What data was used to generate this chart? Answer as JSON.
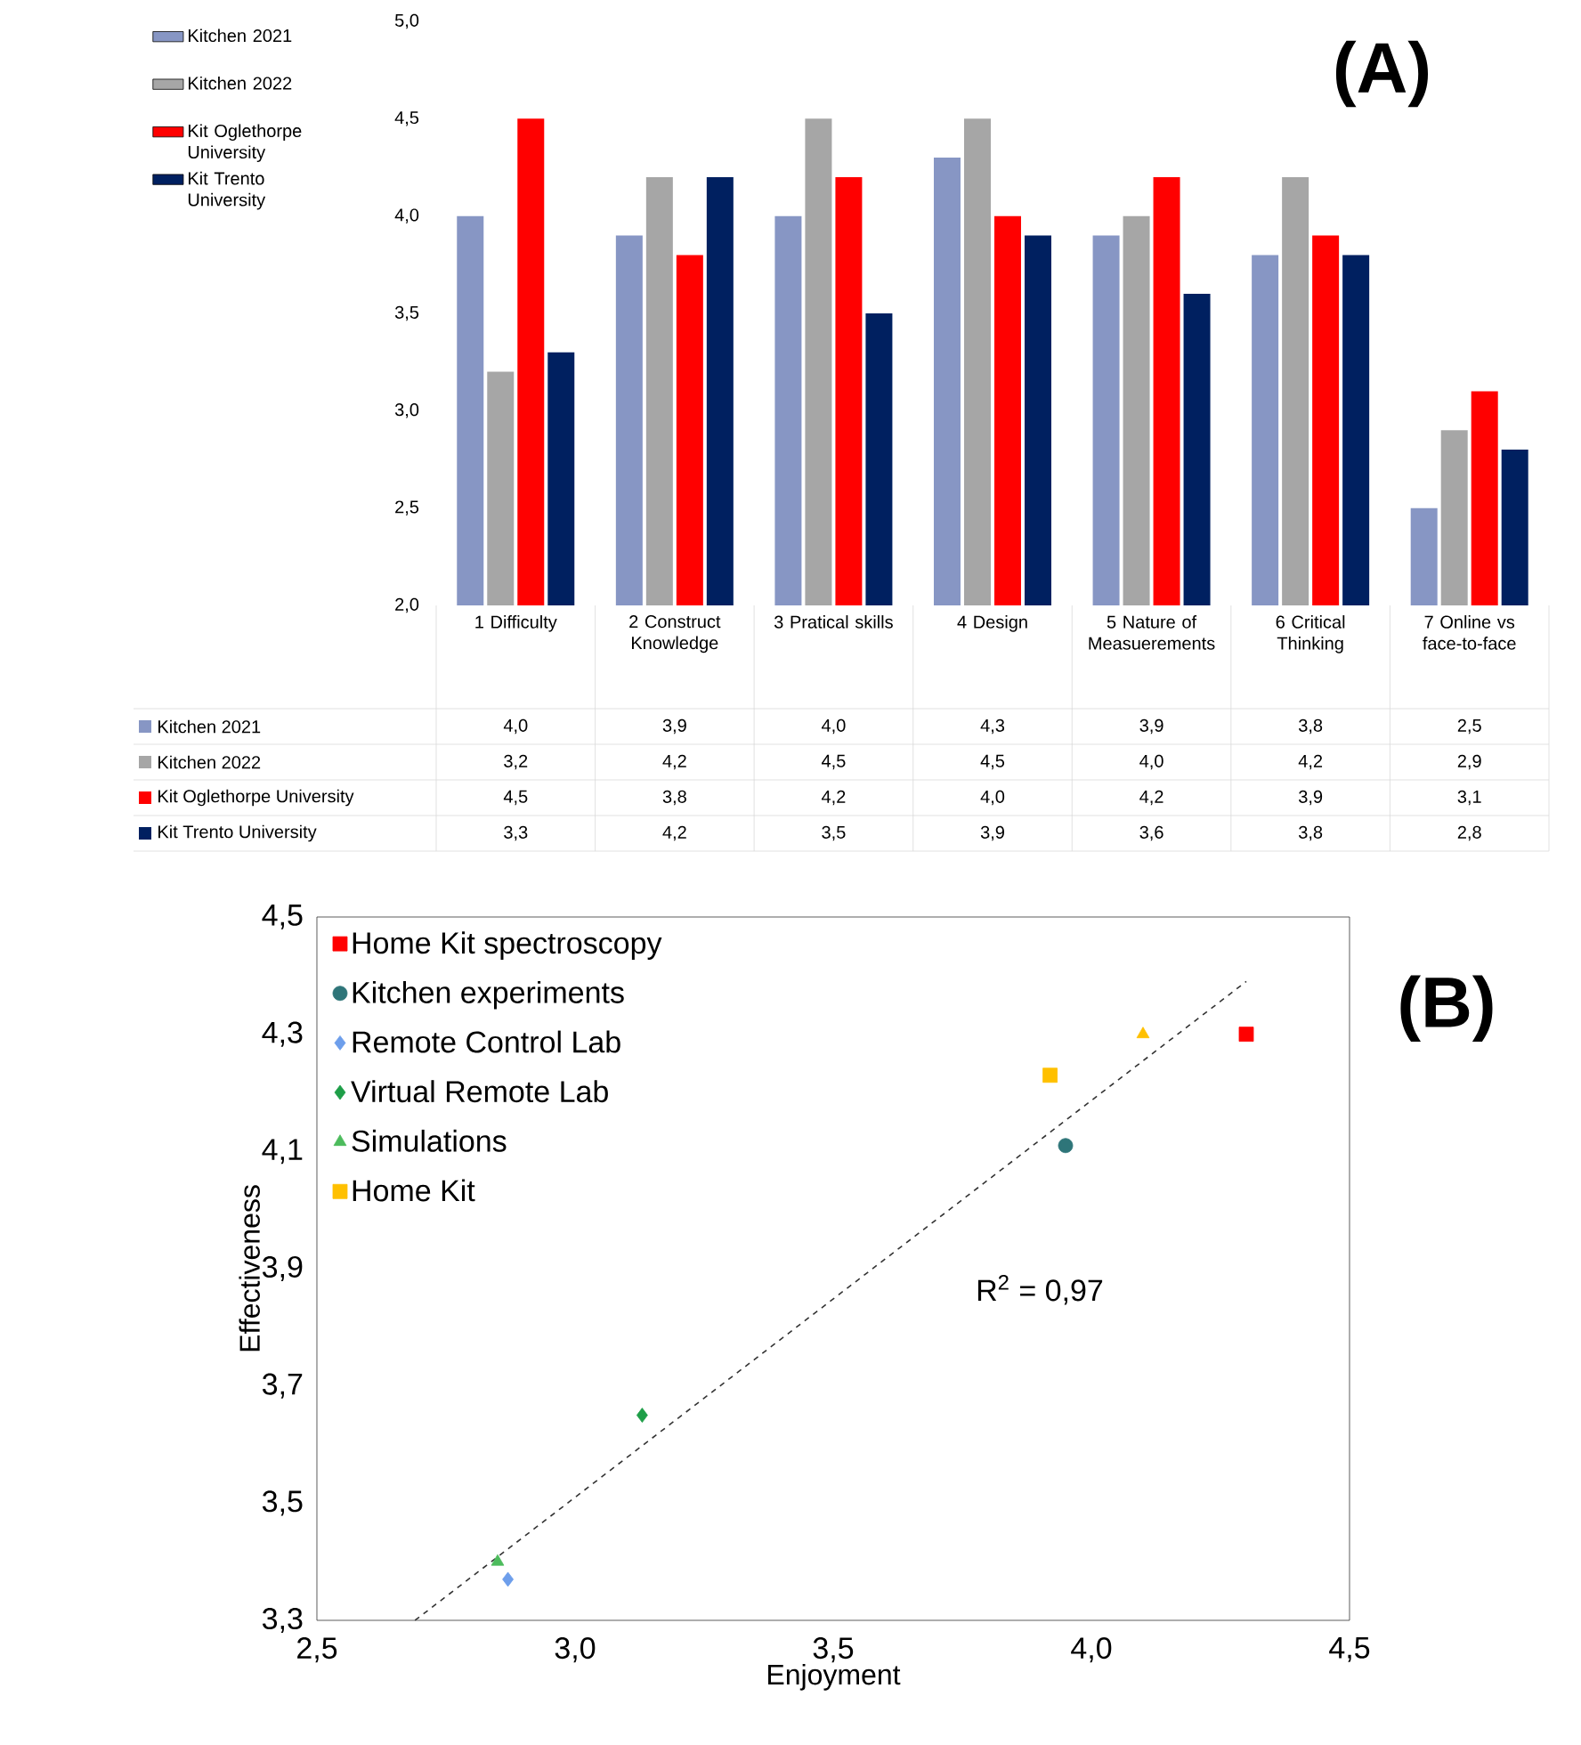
{
  "chart_data": [
    {
      "type": "bar",
      "title": "(A)",
      "legend": "left",
      "categories": [
        "1 Difficulty",
        "2 Construct Knowledge",
        "3 Pratical skills",
        "4 Design",
        "5 Nature of Measuerements",
        "6 Critical Thinking",
        "7 Online vs face-to-face"
      ],
      "ylim": [
        2.0,
        5.0
      ],
      "yticks": [
        {
          "value": 2.0,
          "label": "2,0"
        },
        {
          "value": 2.5,
          "label": "2,5"
        },
        {
          "value": 3.0,
          "label": "3,0"
        },
        {
          "value": 3.5,
          "label": "3,5"
        },
        {
          "value": 4.0,
          "label": "4,0"
        },
        {
          "value": 4.5,
          "label": "4,5"
        },
        {
          "value": 5.0,
          "label": "5,0"
        }
      ],
      "series": [
        {
          "name": "Kitchen 2021",
          "color": "#8796c4",
          "values": [
            4.0,
            3.9,
            4.0,
            4.3,
            3.9,
            3.8,
            2.5
          ],
          "value_labels": [
            "4,0",
            "3,9",
            "4,0",
            "4,3",
            "3,9",
            "3,8",
            "2,5"
          ]
        },
        {
          "name": "Kitchen 2022",
          "color": "#a6a6a6",
          "values": [
            3.2,
            4.2,
            4.5,
            4.5,
            4.0,
            4.2,
            2.9
          ],
          "value_labels": [
            "3,2",
            "4,2",
            "4,5",
            "4,5",
            "4,0",
            "4,2",
            "2,9"
          ]
        },
        {
          "name": "Kit Oglethorpe University",
          "color": "#ff0000",
          "values": [
            4.5,
            3.8,
            4.2,
            4.0,
            4.2,
            3.9,
            3.1
          ],
          "value_labels": [
            "4,5",
            "3,8",
            "4,2",
            "4,0",
            "4,2",
            "3,9",
            "3,1"
          ]
        },
        {
          "name": "Kit Trento  University",
          "color": "#002060",
          "values": [
            3.3,
            4.2,
            3.5,
            3.9,
            3.6,
            3.8,
            2.8
          ],
          "value_labels": [
            "3,3",
            "4,2",
            "3,5",
            "3,9",
            "3,6",
            "3,8",
            "2,8"
          ]
        }
      ]
    },
    {
      "type": "scatter",
      "title": "(B)",
      "xlabel": "Enjoyment",
      "ylabel": "Effectiveness",
      "legend": "top left",
      "annotations": [
        "R$^{2}$ = 0,97"
      ],
      "xlim": [
        2.5,
        4.5
      ],
      "xticks": [
        {
          "value": 2.5,
          "label": "2,5"
        },
        {
          "value": 3.0,
          "label": "3,0"
        },
        {
          "value": 3.5,
          "label": "3,5"
        },
        {
          "value": 4.0,
          "label": "4,0"
        },
        {
          "value": 4.5,
          "label": "4,5"
        }
      ],
      "ylim": [
        3.3,
        4.5
      ],
      "yticks": [
        {
          "value": 3.3,
          "label": "3,3"
        },
        {
          "value": 3.5,
          "label": "3,5"
        },
        {
          "value": 3.7,
          "label": "3,7"
        },
        {
          "value": 3.9,
          "label": "3,9"
        },
        {
          "value": 4.1,
          "label": "4,1"
        },
        {
          "value": 4.3,
          "label": "4,3"
        },
        {
          "value": 4.5,
          "label": "4,5"
        }
      ],
      "series": [
        {
          "name": "Home Kit spectroscopy",
          "color": "#ff0000",
          "marker": "square",
          "x": [
            4.3
          ],
          "values": [
            4.3
          ]
        },
        {
          "name": "Kitchen experiments",
          "color": "#2e7579",
          "marker": "circle",
          "x": [
            3.95
          ],
          "values": [
            4.11
          ]
        },
        {
          "name": "Remote Control Lab",
          "color": "#6d9eeb",
          "marker": "diamond",
          "x": [
            2.87
          ],
          "values": [
            3.37
          ]
        },
        {
          "name": "Virtual Remote  Lab",
          "color": "#1e9e48",
          "marker": "diamond",
          "x": [
            3.13
          ],
          "values": [
            3.65
          ]
        },
        {
          "name": "Simulations",
          "color": "#4cbb5c",
          "marker": "triangle",
          "x": [
            2.85
          ],
          "values": [
            3.4
          ]
        },
        {
          "color": "#ffc000",
          "marker": "triangle",
          "x": [
            4.1
          ],
          "values": [
            4.3
          ]
        },
        {
          "name": "Home Kit",
          "color": "#ffc000",
          "marker": "square",
          "x": [
            3.92
          ],
          "values": [
            4.23
          ]
        },
        {
          "type": "line",
          "color": "#333333",
          "marker": "none",
          "line_style": "dashed",
          "x": [
            2.69,
            4.3
          ],
          "values": [
            3.3,
            4.39
          ]
        }
      ]
    }
  ]
}
